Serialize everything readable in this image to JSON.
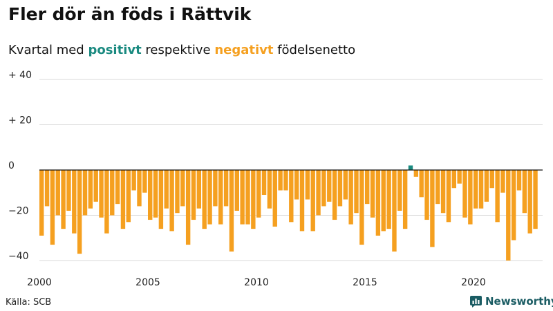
{
  "header": {
    "title": "Fler dör än föds i Rättvik",
    "subtitle_pre": "Kvartal med ",
    "subtitle_pos": "positivt",
    "subtitle_mid": " respektive ",
    "subtitle_neg": "negativt",
    "subtitle_post": " födelsenetto"
  },
  "footer": {
    "source": "Källa: SCB",
    "logo_text": "Newsworthy",
    "logo_icon": "bar-chart-icon"
  },
  "colors": {
    "positive": "#1a8a80",
    "negative": "#f5a020",
    "logo": "#1a5c63"
  },
  "chart_data": {
    "type": "bar",
    "start": "2000Q1",
    "frequency": "quarter",
    "ylim": [
      -40,
      40
    ],
    "yticks": [
      {
        "value": 40,
        "label": "+ 40"
      },
      {
        "value": 20,
        "label": "+ 20"
      },
      {
        "value": 0,
        "label": "0"
      },
      {
        "value": -20,
        "label": "−20"
      },
      {
        "value": -40,
        "label": "−40"
      }
    ],
    "xticks": [
      {
        "value": 2000,
        "label": "2000"
      },
      {
        "value": 2005,
        "label": "2005"
      },
      {
        "value": 2010,
        "label": "2010"
      },
      {
        "value": 2015,
        "label": "2015"
      },
      {
        "value": 2020,
        "label": "2020"
      }
    ],
    "grid": true,
    "values": [
      -29,
      -16,
      -33,
      -20,
      -26,
      -18,
      -28,
      -37,
      -20,
      -17,
      -14,
      -21,
      -28,
      -20,
      -15,
      -26,
      -23,
      -9,
      -16,
      -10,
      -22,
      -21,
      -26,
      -17,
      -27,
      -19,
      -16,
      -33,
      -22,
      -17,
      -26,
      -24,
      -16,
      -24,
      -16,
      -36,
      -18,
      -24,
      -24,
      -26,
      -21,
      -11,
      -17,
      -25,
      -9,
      -9,
      -23,
      -13,
      -27,
      -13,
      -27,
      -20,
      -16,
      -14,
      -22,
      -16,
      -13,
      -24,
      -19,
      -33,
      -15,
      -21,
      -29,
      -27,
      -26,
      -36,
      -18,
      -26,
      2,
      -3,
      -12,
      -22,
      -34,
      -15,
      -19,
      -23,
      -8,
      -6,
      -21,
      -24,
      -17,
      -17,
      -14,
      -8,
      -23,
      -10,
      -40,
      -31,
      -9,
      -19,
      -28,
      -26
    ]
  }
}
